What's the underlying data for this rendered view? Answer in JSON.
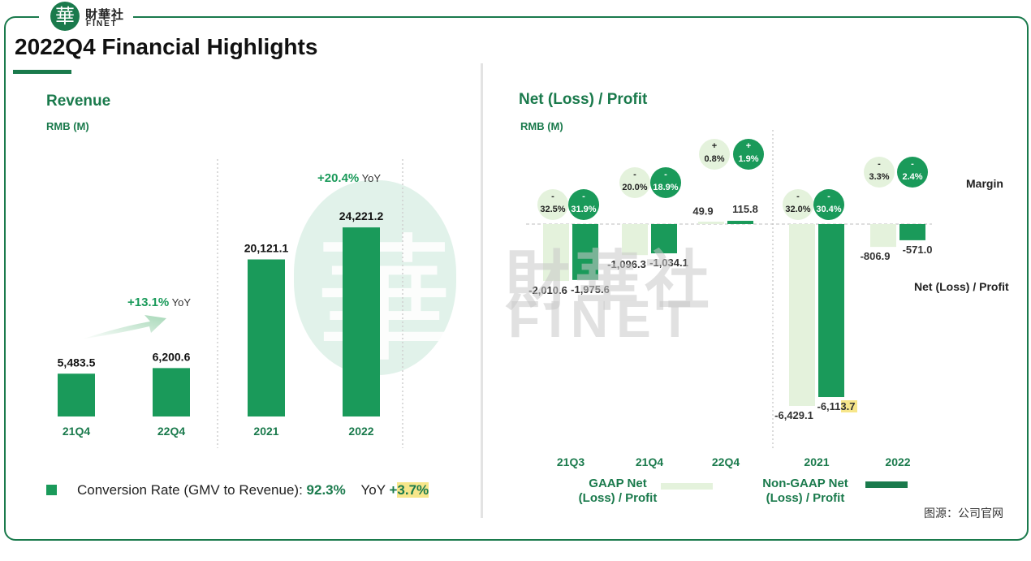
{
  "header": {
    "logo_glyph": "華",
    "logo_cn": "財華社",
    "logo_en": "FINET",
    "title": "2022Q4 Financial Highlights"
  },
  "watermark": {
    "cn": "財華社",
    "en": "FINET",
    "glyph": "華"
  },
  "chart_data": [
    {
      "type": "bar",
      "title": "Revenue",
      "ylabel": "RMB (M)",
      "categories": [
        "21Q4",
        "22Q4",
        "2021",
        "2022"
      ],
      "values": [
        5483.5,
        6200.6,
        20121.1,
        24221.2
      ],
      "value_labels": [
        "5,483.5",
        "6,200.6",
        "20,121.1",
        "24,221.2"
      ],
      "annotations": [
        {
          "text": "+13.1%",
          "suffix": "YoY",
          "between": [
            "21Q4",
            "22Q4"
          ]
        },
        {
          "text": "+20.4%",
          "suffix": "YoY",
          "between": [
            "2021",
            "2022"
          ]
        }
      ],
      "ylim": [
        0,
        26000
      ],
      "bar_color": "#1a9a5a"
    },
    {
      "type": "bar",
      "title": "Net (Loss) / Profit",
      "ylabel": "RMB (M)",
      "categories": [
        "21Q3",
        "21Q4",
        "22Q4",
        "2021",
        "2022"
      ],
      "series": [
        {
          "name": "GAAP Net (Loss) / Profit",
          "color": "#e4f2dc",
          "values": [
            -2010.6,
            -1096.3,
            49.9,
            -6429.1,
            -806.9
          ],
          "labels": [
            "-2,010.6",
            "-1,096.3",
            "49.9",
            "-6,429.1",
            "-806.9"
          ],
          "margins": [
            "32.5%",
            "20.0%",
            "0.8%",
            "32.0%",
            "3.3%"
          ],
          "margin_signs": [
            "-",
            "-",
            "+",
            "-",
            "-"
          ]
        },
        {
          "name": "Non-GAAP Net (Loss) / Profit",
          "color": "#1a9a5a",
          "values": [
            -1975.6,
            -1034.1,
            115.8,
            -6113.7,
            -571.0
          ],
          "labels": [
            "-1,975.6",
            "-1,034.1",
            "115.8",
            "-6,113.7",
            "-571.0"
          ],
          "margins": [
            "31.9%",
            "18.9%",
            "1.9%",
            "30.4%",
            "2.4%"
          ],
          "margin_signs": [
            "-",
            "-",
            "+",
            "-",
            "-"
          ]
        }
      ],
      "legend": [
        "GAAP Net",
        "(Loss) / Profit",
        "Non-GAAP Net",
        "(Loss) / Profit"
      ],
      "side_labels": {
        "margin": "Margin",
        "net": "Net (Loss) / Profit"
      }
    }
  ],
  "conversion": {
    "label": "Conversion Rate (GMV to Revenue):",
    "rate": "92.3%",
    "yoy_label": "YoY",
    "yoy_sign": "+",
    "yoy_value": "3.7%"
  },
  "source": "图源：公司官网"
}
